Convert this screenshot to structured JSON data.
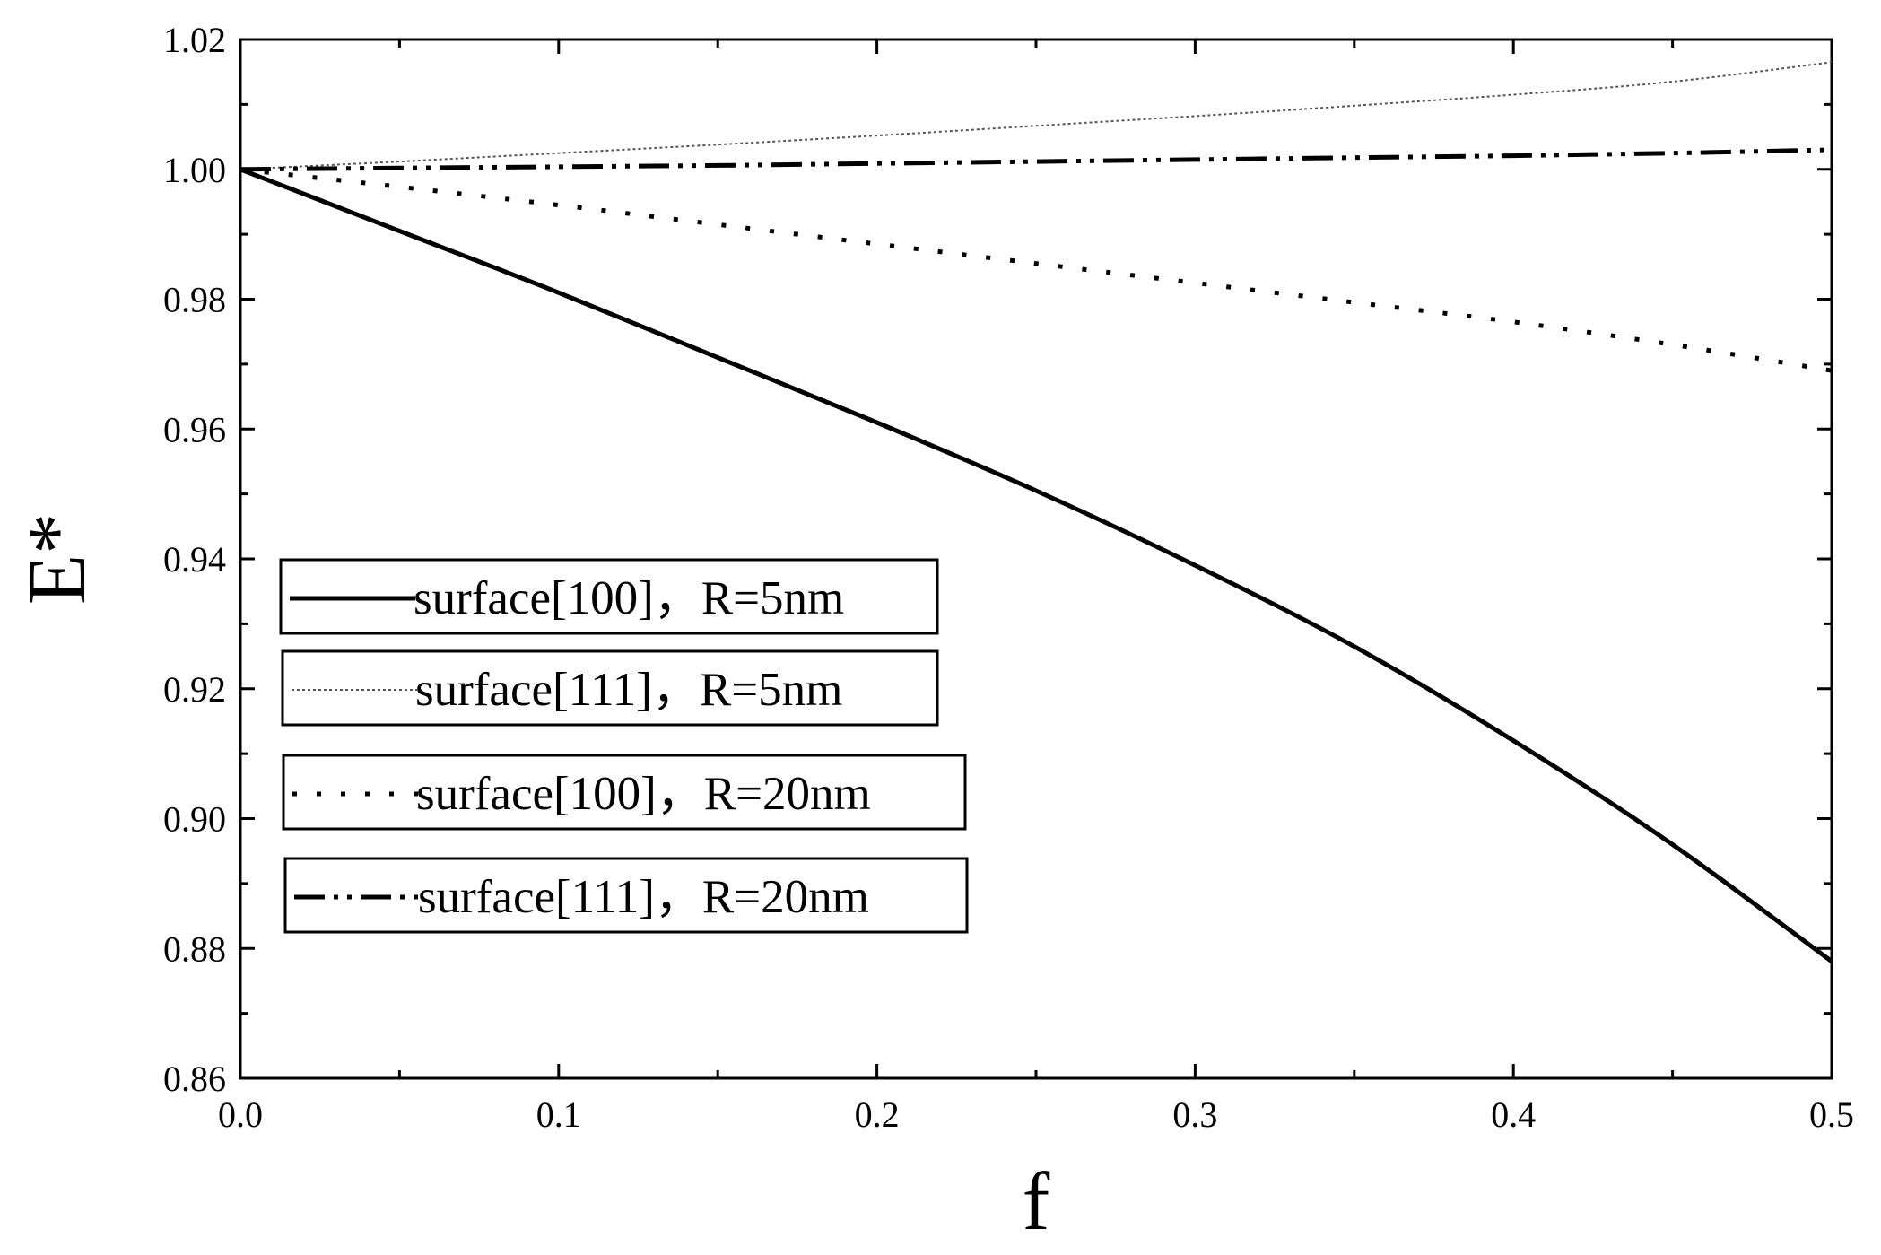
{
  "chart_data": {
    "type": "line",
    "title": "",
    "xlabel": "f",
    "ylabel": "E*",
    "xlim": [
      0.0,
      0.5
    ],
    "ylim": [
      0.86,
      1.02
    ],
    "xticks": [
      "0.0",
      "0.1",
      "0.2",
      "0.3",
      "0.4",
      "0.5"
    ],
    "yticks": [
      "0.86",
      "0.88",
      "0.90",
      "0.92",
      "0.94",
      "0.96",
      "0.98",
      "1.00",
      "1.02"
    ],
    "grid": false,
    "legend_position": "center-left",
    "series": [
      {
        "name": "surface[100]，R=5nm",
        "style": "solid",
        "x": [
          0.0,
          0.05,
          0.1,
          0.15,
          0.2,
          0.25,
          0.3,
          0.35,
          0.4,
          0.45,
          0.5
        ],
        "y": [
          1.0,
          0.9905,
          0.981,
          0.971,
          0.961,
          0.9505,
          0.939,
          0.9265,
          0.912,
          0.896,
          0.878
        ]
      },
      {
        "name": "surface[111]，R=5nm",
        "style": "dense-dotted",
        "x": [
          0.0,
          0.05,
          0.1,
          0.15,
          0.2,
          0.25,
          0.3,
          0.35,
          0.4,
          0.45,
          0.5
        ],
        "y": [
          1.0,
          1.0012,
          1.0025,
          1.0038,
          1.0052,
          1.0067,
          1.0082,
          1.0098,
          1.0115,
          1.0135,
          1.0165
        ]
      },
      {
        "name": "surface[100]，R=20nm",
        "style": "dotted",
        "x": [
          0.0,
          0.05,
          0.1,
          0.15,
          0.2,
          0.25,
          0.3,
          0.35,
          0.4,
          0.45,
          0.5
        ],
        "y": [
          1.0,
          0.9973,
          0.9945,
          0.9915,
          0.9885,
          0.9855,
          0.9825,
          0.9795,
          0.9765,
          0.973,
          0.969
        ]
      },
      {
        "name": "surface[111]，R=20nm",
        "style": "dash-dot",
        "x": [
          0.0,
          0.05,
          0.1,
          0.15,
          0.2,
          0.25,
          0.3,
          0.35,
          0.4,
          0.45,
          0.5
        ],
        "y": [
          1.0,
          1.0002,
          1.0004,
          1.0006,
          1.0009,
          1.0012,
          1.0015,
          1.0018,
          1.0021,
          1.0025,
          1.003
        ]
      }
    ]
  }
}
